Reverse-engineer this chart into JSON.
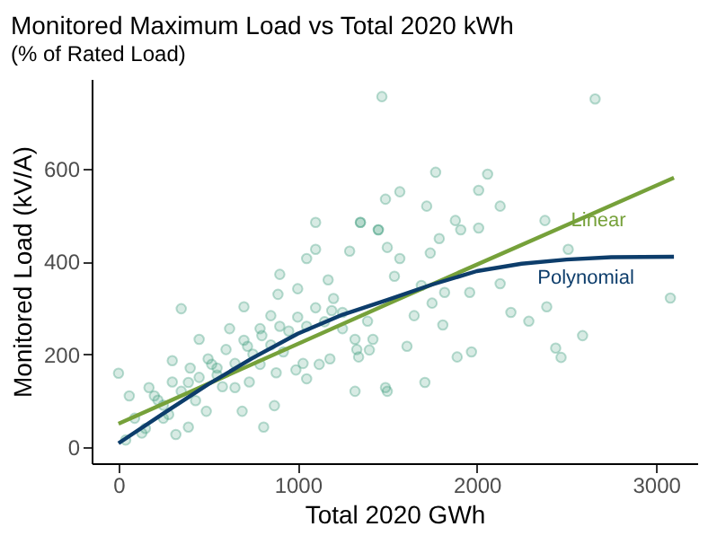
{
  "chart_data": {
    "type": "scatter",
    "title": "Monitored Maximum Load vs Total 2020 kWh",
    "subtitle": "(% of Rated Load)",
    "xlabel": "Total 2020 GWh",
    "ylabel": "Monitored Load (kV/A)",
    "xlim": [
      -150,
      3230
    ],
    "ylim": [
      -35,
      793
    ],
    "xticks": [
      0,
      {
        "value": 1000,
        "label": "1000"
      },
      {
        "value": 2000,
        "label": "2000"
      },
      {
        "value": 3000,
        "label": "3000"
      }
    ],
    "yticks": [
      0,
      200,
      400,
      600
    ],
    "grid": false,
    "legend": false,
    "marker": "circle",
    "series": [
      {
        "color": "#3a9a7a",
        "x": [
          1470,
          2660,
          0,
          350,
          1770,
          2060,
          2010,
          2130,
          2380,
          2510,
          3080,
          2590,
          2470,
          2440,
          2390,
          2290,
          2190,
          2130,
          2010,
          1960,
          1970,
          1890,
          1810,
          1710,
          1500,
          1610,
          1910,
          1880,
          1720,
          1570,
          1490,
          1350,
          1450,
          1790,
          1740,
          1820,
          1750,
          1650,
          1540,
          1570,
          1500,
          1690,
          1420,
          1340,
          1100,
          1350,
          1450,
          1050,
          1100,
          900,
          1170,
          1290,
          1000,
          890,
          700,
          620,
          450,
          790,
          1250,
          1320,
          300,
          170,
          90,
          320,
          390,
          690,
          810,
          870,
          1050,
          1120,
          1320,
          1400,
          1490,
          990,
          650,
          550,
          490,
          250,
          220,
          790,
          920,
          520,
          390,
          720,
          1190,
          1390,
          850,
          40,
          200,
          300,
          400,
          500,
          600,
          700,
          800,
          900,
          1000,
          1100,
          1200,
          150,
          250,
          350,
          450,
          550,
          650,
          750,
          850,
          950,
          1050,
          1150,
          1250,
          60,
          130,
          280,
          430,
          580,
          730,
          880,
          1030,
          1180,
          1330
        ],
        "values": [
          755,
          750,
          159,
          298,
          592,
          588,
          553,
          519,
          488,
          426,
          321,
          240,
          193,
          213,
          302,
          271,
          290,
          352,
          472,
          333,
          205,
          194,
          263,
          139,
          120,
          217,
          468,
          488,
          519,
          550,
          534,
          484,
          468,
          449,
          418,
          333,
          310,
          283,
          368,
          406,
          430,
          348,
          232,
          194,
          484,
          484,
          468,
          406,
          426,
          372,
          360,
          422,
          341,
          329,
          302,
          255,
          232,
          255,
          255,
          232,
          186,
          128,
          62,
          27,
          43,
          77,
          43,
          89,
          147,
          178,
          120,
          209,
          128,
          166,
          128,
          155,
          77,
          62,
          101,
          178,
          205,
          178,
          139,
          217,
          294,
          271,
          283,
          15,
          110,
          140,
          170,
          190,
          210,
          230,
          240,
          260,
          280,
          300,
          320,
          40,
          90,
          120,
          150,
          170,
          180,
          200,
          220,
          250,
          260,
          270,
          290,
          110,
          30,
          70,
          100,
          130,
          140,
          160,
          180,
          190,
          210
        ]
      },
      {
        "type": "line",
        "name": "Linear",
        "color": "#76a13a",
        "marker": "none",
        "line_style": "solid",
        "x": [
          0,
          1500,
          3100
        ],
        "values": [
          50,
          308,
          580
        ]
      },
      {
        "type": "line",
        "name": "Polynomial",
        "color": "#0d3d6b",
        "marker": "none",
        "line_style": "solid",
        "x": [
          0,
          250,
          500,
          750,
          1000,
          1250,
          1500,
          1750,
          2000,
          2250,
          2500,
          2750,
          3100
        ],
        "values": [
          8,
          72,
          135,
          192,
          244,
          285,
          317,
          350,
          379,
          395,
          404,
          409,
          410
        ]
      }
    ]
  }
}
